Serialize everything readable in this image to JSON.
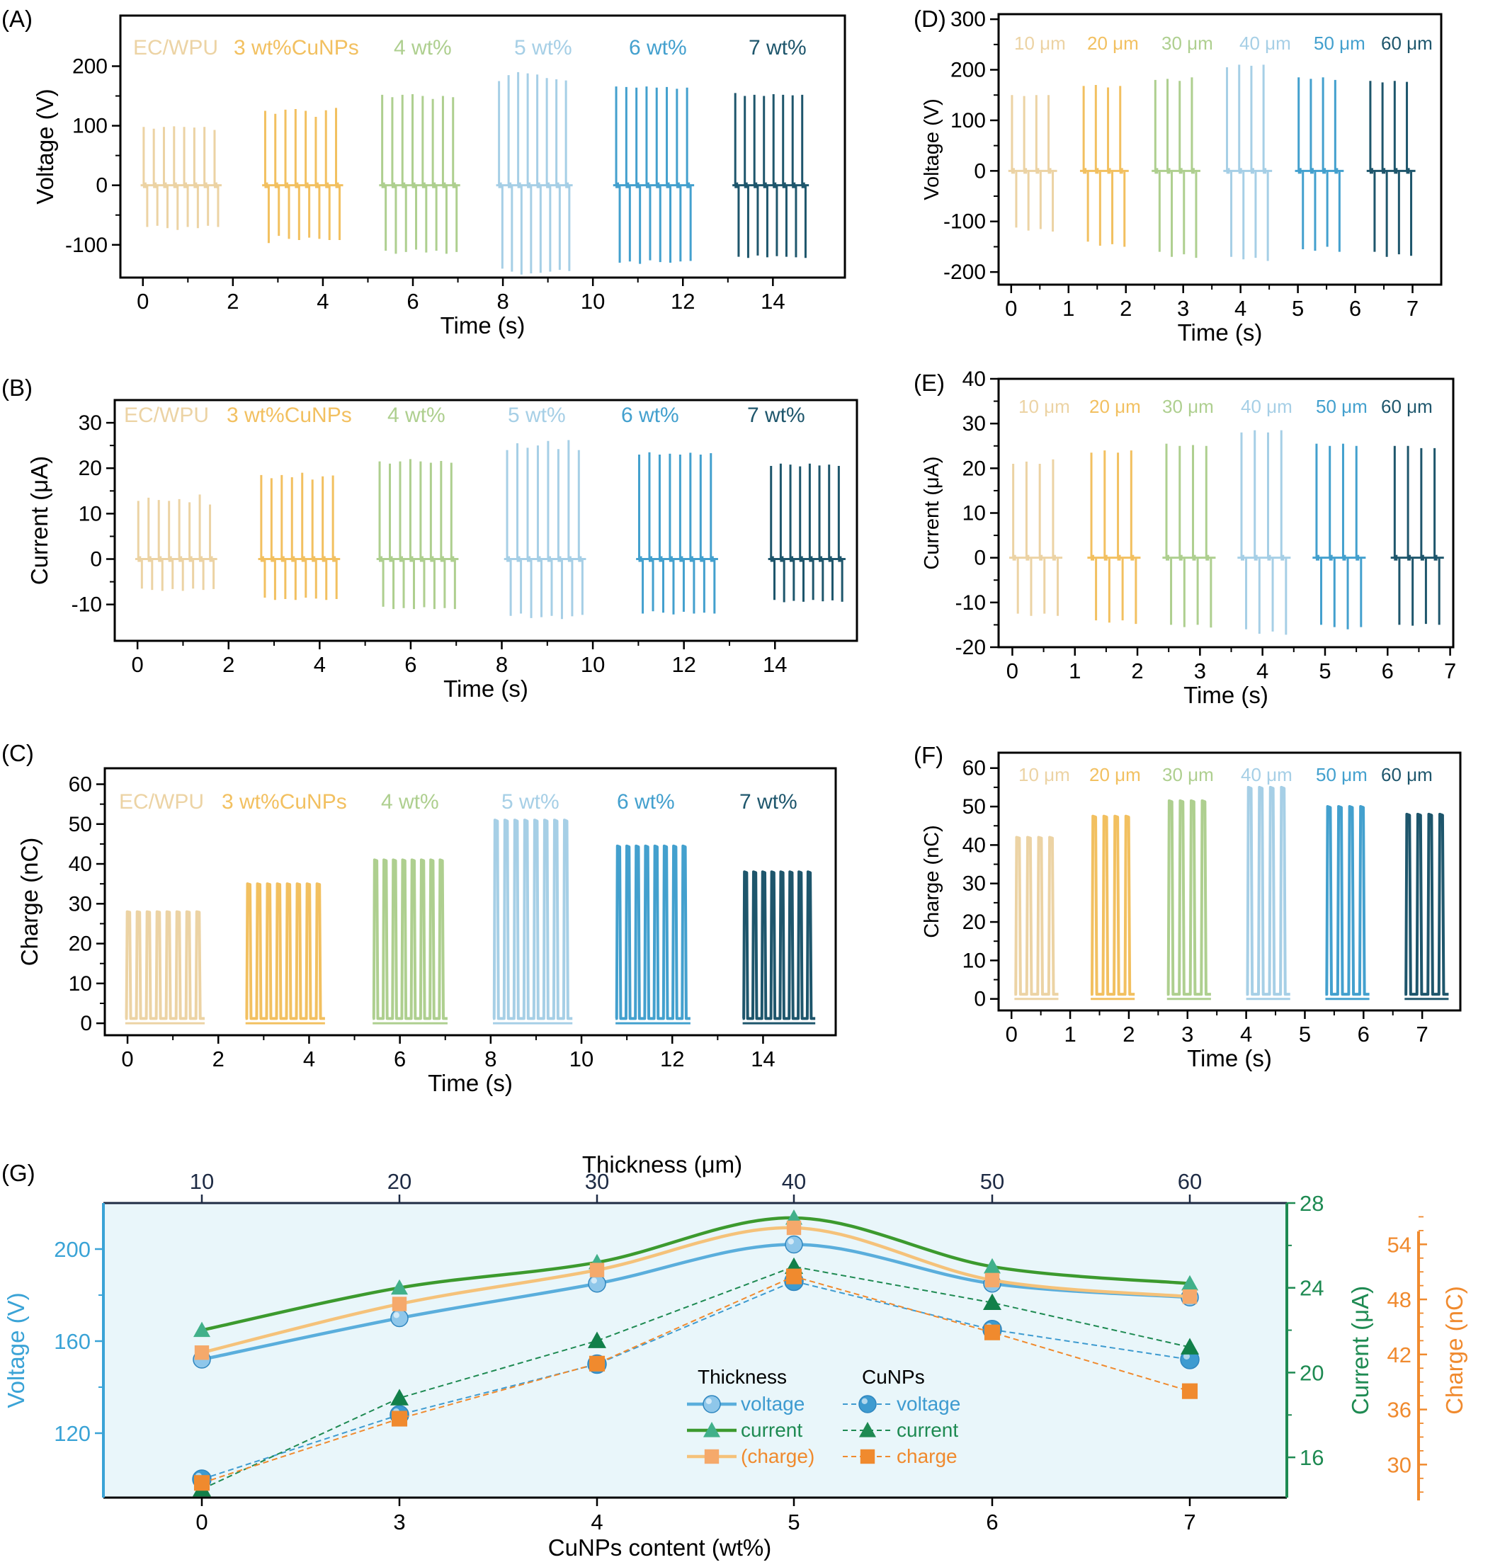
{
  "figure": {
    "panel_labels": [
      "(A)",
      "(B)",
      "(C)",
      "(D)",
      "(E)",
      "(F)",
      "(G)"
    ]
  },
  "colors": {
    "c0": "#ECD3A4",
    "c1": "#F2C060",
    "c2": "#AECF8F",
    "c3": "#A6CFE6",
    "c4": "#43A0CE",
    "c5": "#1E566C",
    "voltage_axis": "#3AA3D6",
    "current_axis": "#1E8A52",
    "charge_axis": "#F08A2E",
    "g_background": "#E9F6FA"
  },
  "chart_data": [
    {
      "panel": "(A)",
      "type": "line",
      "xlabel": "Time (s)",
      "ylabel": "Voltage (V)",
      "xlim": [
        -0.5,
        15.6
      ],
      "ylim": [
        -155,
        285
      ],
      "xticks": [
        0,
        2,
        4,
        6,
        8,
        10,
        12,
        14
      ],
      "yticks": [
        -100,
        0,
        100,
        200
      ],
      "legend": [
        "EC/WPU",
        "3 wt%CuNPs",
        "4 wt%",
        "5 wt%",
        "6 wt%",
        "7 wt%"
      ],
      "series": [
        {
          "name": "EC/WPU",
          "x_range": [
            -0.05,
            1.75
          ],
          "pulses": 8,
          "peak": [
            98,
            95,
            98,
            99,
            98,
            97,
            98,
            93
          ],
          "trough": [
            -70,
            -68,
            -72,
            -75,
            -70,
            -72,
            -68,
            -70
          ]
        },
        {
          "name": "3 wt%CuNPs",
          "x_range": [
            2.65,
            4.45
          ],
          "pulses": 8,
          "peak": [
            125,
            120,
            127,
            128,
            125,
            115,
            126,
            130
          ],
          "trough": [
            -97,
            -85,
            -90,
            -92,
            -88,
            -90,
            -92,
            -92
          ]
        },
        {
          "name": "4 wt%",
          "x_range": [
            5.25,
            7.05
          ],
          "pulses": 8,
          "peak": [
            152,
            148,
            152,
            153,
            150,
            145,
            150,
            148
          ],
          "trough": [
            -110,
            -115,
            -112,
            -108,
            -113,
            -110,
            -115,
            -112
          ]
        },
        {
          "name": "5 wt%",
          "x_range": [
            7.85,
            9.55
          ],
          "pulses": 8,
          "peak": [
            175,
            185,
            190,
            188,
            186,
            180,
            178,
            176
          ],
          "trough": [
            -140,
            -145,
            -150,
            -148,
            -147,
            -145,
            -142,
            -144
          ]
        },
        {
          "name": "6 wt%",
          "x_range": [
            10.45,
            12.25
          ],
          "pulses": 8,
          "peak": [
            166,
            165,
            164,
            166,
            164,
            165,
            162,
            164
          ],
          "trough": [
            -130,
            -128,
            -132,
            -126,
            -129,
            -130,
            -128,
            -127
          ]
        },
        {
          "name": "7 wt%",
          "x_range": [
            13.1,
            14.8
          ],
          "pulses": 8,
          "peak": [
            155,
            150,
            152,
            150,
            153,
            152,
            151,
            152
          ],
          "trough": [
            -120,
            -122,
            -118,
            -121,
            -119,
            -120,
            -121,
            -122
          ]
        }
      ]
    },
    {
      "panel": "(B)",
      "type": "line",
      "xlabel": "Time (s)",
      "ylabel": "Current (μA)",
      "xlim": [
        -0.5,
        15.8
      ],
      "ylim": [
        -18,
        35
      ],
      "xticks": [
        0,
        2,
        4,
        6,
        8,
        10,
        12,
        14
      ],
      "yticks": [
        -10,
        0,
        10,
        20,
        30
      ],
      "legend": [
        "EC/WPU",
        "3 wt%CuNPs",
        "4 wt%",
        "5 wt%",
        "6 wt%",
        "7 wt%"
      ],
      "series": [
        {
          "name": "EC/WPU",
          "x_range": [
            -0.05,
            1.75
          ],
          "pulses": 8,
          "peak": [
            12.8,
            13.5,
            13,
            12.8,
            13.2,
            12.5,
            14.2,
            12
          ],
          "trough": [
            -6.5,
            -6.8,
            -7,
            -6.6,
            -7,
            -6.5,
            -6.8,
            -6.6
          ]
        },
        {
          "name": "3 wt%CuNPs",
          "x_range": [
            2.65,
            4.45
          ],
          "pulses": 8,
          "peak": [
            18.5,
            17.8,
            18.5,
            18,
            19,
            17.5,
            18.2,
            18.4
          ],
          "trough": [
            -8.5,
            -9,
            -8.8,
            -9,
            -8.5,
            -8.7,
            -9,
            -8.8
          ]
        },
        {
          "name": "4 wt%",
          "x_range": [
            5.25,
            7.05
          ],
          "pulses": 8,
          "peak": [
            21.5,
            21,
            21.5,
            22,
            21.5,
            21.2,
            21.6,
            21.2
          ],
          "trough": [
            -10.5,
            -11,
            -10.8,
            -11,
            -10.6,
            -11,
            -10.8,
            -11
          ]
        },
        {
          "name": "5 wt%",
          "x_range": [
            8.05,
            9.85
          ],
          "pulses": 8,
          "peak": [
            24,
            25.5,
            24.5,
            25,
            26,
            24.2,
            26.2,
            24
          ],
          "trough": [
            -12.5,
            -12,
            -13,
            -12.8,
            -12.5,
            -13.2,
            -12.6,
            -12.3
          ]
        },
        {
          "name": "6 wt%",
          "x_range": [
            10.95,
            12.75
          ],
          "pulses": 8,
          "peak": [
            23,
            23.5,
            23,
            23.2,
            23,
            23.4,
            23,
            23.3
          ],
          "trough": [
            -12,
            -11.5,
            -11.8,
            -12.2,
            -11.6,
            -12,
            -11.8,
            -12
          ]
        },
        {
          "name": "7 wt%",
          "x_range": [
            13.85,
            15.55
          ],
          "pulses": 8,
          "peak": [
            20.5,
            21,
            20.8,
            20.4,
            21,
            20.6,
            20.8,
            20.5
          ],
          "trough": [
            -9,
            -9.5,
            -9.2,
            -9.4,
            -9,
            -9.3,
            -9.1,
            -9.4
          ]
        }
      ]
    },
    {
      "panel": "(C)",
      "type": "line",
      "xlabel": "Time (s)",
      "ylabel": "Charge (nC)",
      "xlim": [
        -0.5,
        15.6
      ],
      "ylim": [
        -3,
        64
      ],
      "xticks": [
        0,
        2,
        4,
        6,
        8,
        10,
        12,
        14
      ],
      "yticks": [
        0,
        10,
        20,
        30,
        40,
        50,
        60
      ],
      "legend": [
        "EC/WPU",
        "3 wt%CuNPs",
        "4 wt%",
        "5 wt%",
        "6 wt%",
        "7 wt%"
      ],
      "series": [
        {
          "name": "EC/WPU",
          "x_range": [
            -0.05,
            1.7
          ],
          "pulses": 8,
          "peak_level": 28
        },
        {
          "name": "3 wt%CuNPs",
          "x_range": [
            2.6,
            4.35
          ],
          "pulses": 8,
          "peak_level": 35
        },
        {
          "name": "4 wt%",
          "x_range": [
            5.4,
            7.05
          ],
          "pulses": 8,
          "peak_level": 41
        },
        {
          "name": "5 wt%",
          "x_range": [
            8.05,
            9.8
          ],
          "pulses": 8,
          "peak_level": 51
        },
        {
          "name": "6 wt%",
          "x_range": [
            10.75,
            12.4
          ],
          "pulses": 8,
          "peak_level": 44.5
        },
        {
          "name": "7 wt%",
          "x_range": [
            13.55,
            15.15
          ],
          "pulses": 8,
          "peak_level": 38
        }
      ]
    },
    {
      "panel": "(D)",
      "type": "line",
      "xlabel": "Time (s)",
      "ylabel": "Voltage (V)",
      "xlim": [
        -0.22,
        7.5
      ],
      "ylim": [
        -225,
        310
      ],
      "xticks": [
        0,
        1,
        2,
        3,
        4,
        5,
        6,
        7
      ],
      "yticks": [
        -200,
        -100,
        0,
        100,
        200,
        300
      ],
      "legend": [
        "10 μm",
        "20 μm",
        "30 μm",
        "40 μm",
        "50 μm",
        "60 μm"
      ],
      "series": [
        {
          "name": "10 μm",
          "x_range": [
            -0.05,
            0.8
          ],
          "pulses": 4,
          "peak": [
            150,
            148,
            150,
            150
          ],
          "trough": [
            -112,
            -118,
            -115,
            -120
          ]
        },
        {
          "name": "20 μm",
          "x_range": [
            1.2,
            2.05
          ],
          "pulses": 4,
          "peak": [
            168,
            170,
            165,
            168
          ],
          "trough": [
            -140,
            -148,
            -145,
            -150
          ]
        },
        {
          "name": "30 μm",
          "x_range": [
            2.45,
            3.3
          ],
          "pulses": 4,
          "peak": [
            180,
            182,
            178,
            185
          ],
          "trough": [
            -160,
            -170,
            -165,
            -172
          ]
        },
        {
          "name": "40 μm",
          "x_range": [
            3.7,
            4.55
          ],
          "pulses": 4,
          "peak": [
            205,
            210,
            208,
            210
          ],
          "trough": [
            -170,
            -175,
            -172,
            -178
          ]
        },
        {
          "name": "50 μm",
          "x_range": [
            4.95,
            5.8
          ],
          "pulses": 4,
          "peak": [
            185,
            182,
            185,
            180
          ],
          "trough": [
            -155,
            -158,
            -150,
            -160
          ]
        },
        {
          "name": "60 μm",
          "x_range": [
            6.2,
            7.05
          ],
          "pulses": 4,
          "peak": [
            178,
            175,
            178,
            176
          ],
          "trough": [
            -160,
            -170,
            -165,
            -168
          ]
        }
      ]
    },
    {
      "panel": "(E)",
      "type": "line",
      "xlabel": "Time (s)",
      "ylabel": "Current (μA)",
      "xlim": [
        -0.22,
        7.05
      ],
      "ylim": [
        -20,
        40
      ],
      "xticks": [
        0,
        1,
        2,
        3,
        4,
        5,
        6,
        7
      ],
      "yticks": [
        -20,
        -10,
        0,
        10,
        20,
        30,
        40
      ],
      "legend": [
        "10 μm",
        "20 μm",
        "30 μm",
        "40 μm",
        "50 μm",
        "60 μm"
      ],
      "series": [
        {
          "name": "10 μm",
          "x_range": [
            -0.05,
            0.8
          ],
          "pulses": 4,
          "peak": [
            21,
            21.5,
            21,
            22
          ],
          "trough": [
            -12.5,
            -13,
            -12.5,
            -13
          ]
        },
        {
          "name": "20 μm",
          "x_range": [
            1.2,
            2.05
          ],
          "pulses": 4,
          "peak": [
            23.5,
            24,
            23.5,
            24
          ],
          "trough": [
            -14,
            -14.5,
            -14,
            -14.8
          ]
        },
        {
          "name": "30 μm",
          "x_range": [
            2.4,
            3.25
          ],
          "pulses": 4,
          "peak": [
            25.5,
            25,
            25.2,
            25
          ],
          "trough": [
            -15,
            -15.5,
            -15,
            -15.6
          ]
        },
        {
          "name": "40 μm",
          "x_range": [
            3.6,
            4.45
          ],
          "pulses": 4,
          "peak": [
            28,
            28.5,
            28,
            28.5
          ],
          "trough": [
            -16,
            -17,
            -16.5,
            -17.2
          ]
        },
        {
          "name": "50 μm",
          "x_range": [
            4.8,
            5.65
          ],
          "pulses": 4,
          "peak": [
            25.5,
            25,
            25.5,
            25
          ],
          "trough": [
            -15,
            -15.5,
            -16,
            -15.5
          ]
        },
        {
          "name": "60 μm",
          "x_range": [
            6.05,
            6.9
          ],
          "pulses": 4,
          "peak": [
            25,
            25,
            24.5,
            24.5
          ],
          "trough": [
            -15,
            -15.2,
            -14.8,
            -15
          ]
        }
      ]
    },
    {
      "panel": "(F)",
      "type": "line",
      "xlabel": "Time (s)",
      "ylabel": "Charge (nC)",
      "xlim": [
        -0.22,
        7.65
      ],
      "ylim": [
        -3,
        64
      ],
      "xticks": [
        0,
        1,
        2,
        3,
        4,
        5,
        6,
        7
      ],
      "yticks": [
        0,
        10,
        20,
        30,
        40,
        50,
        60
      ],
      "legend": [
        "10 μm",
        "20 μm",
        "30 μm",
        "40 μm",
        "50 μm",
        "60 μm"
      ],
      "series": [
        {
          "name": "10 μm",
          "x_range": [
            0.05,
            0.8
          ],
          "pulses": 4,
          "peak_level": 42
        },
        {
          "name": "20 μm",
          "x_range": [
            1.35,
            2.1
          ],
          "pulses": 4,
          "peak_level": 47.5
        },
        {
          "name": "30 μm",
          "x_range": [
            2.65,
            3.4
          ],
          "pulses": 4,
          "peak_level": 51.5
        },
        {
          "name": "40 μm",
          "x_range": [
            4.0,
            4.75
          ],
          "pulses": 4,
          "peak_level": 55
        },
        {
          "name": "50 μm",
          "x_range": [
            5.35,
            6.1
          ],
          "pulses": 4,
          "peak_level": 50
        },
        {
          "name": "60 μm",
          "x_range": [
            6.7,
            7.45
          ],
          "pulses": 4,
          "peak_level": 48
        }
      ]
    },
    {
      "panel": "(G)",
      "type": "line",
      "xlabel": "CuNPs content (wt%)",
      "x_categories": [
        "0",
        "3",
        "4",
        "5",
        "6",
        "7"
      ],
      "x2label": "Thickness (μm)",
      "x2_categories": [
        "10",
        "20",
        "30",
        "40",
        "50",
        "60"
      ],
      "y_left": {
        "label": "Voltage (V)",
        "ylim": [
          92,
          220
        ],
        "ticks": [
          120,
          160,
          200
        ]
      },
      "y_right1": {
        "label": "Current (μA)",
        "ylim": [
          14.1,
          28
        ],
        "ticks": [
          16,
          20,
          24,
          28
        ]
      },
      "y_right2": {
        "label": "Charge (nC)",
        "ylim": [
          26.4,
          58.5
        ],
        "ticks": [
          30,
          36,
          42,
          48,
          54
        ]
      },
      "legend": {
        "thickness_title": "Thickness",
        "cunps_title": "CuNPs",
        "thickness_items": [
          "voltage",
          "current",
          "(charge)"
        ],
        "cunps_items": [
          "voltage",
          "current",
          "charge"
        ]
      },
      "series": [
        {
          "group": "Thickness",
          "name": "voltage",
          "axis": "y_left",
          "values": [
            152,
            170,
            185,
            202,
            185,
            179
          ]
        },
        {
          "group": "Thickness",
          "name": "current",
          "axis": "y_right1",
          "values": [
            22,
            24,
            25.2,
            27.3,
            25,
            24.2
          ]
        },
        {
          "group": "Thickness",
          "name": "(charge)",
          "axis": "y_right2",
          "values": [
            42.2,
            47.5,
            51.2,
            55.8,
            50.1,
            48.3
          ]
        },
        {
          "group": "CuNPs",
          "name": "voltage",
          "axis": "y_left",
          "values": [
            100,
            128,
            150,
            186,
            165,
            152
          ]
        },
        {
          "group": "CuNPs",
          "name": "current",
          "axis": "y_right1",
          "values": [
            14.5,
            18.8,
            21.5,
            25,
            23.3,
            21.2
          ]
        },
        {
          "group": "CuNPs",
          "name": "charge",
          "axis": "y_right2",
          "values": [
            28,
            35,
            41,
            50.5,
            44.4,
            38
          ]
        }
      ]
    }
  ]
}
